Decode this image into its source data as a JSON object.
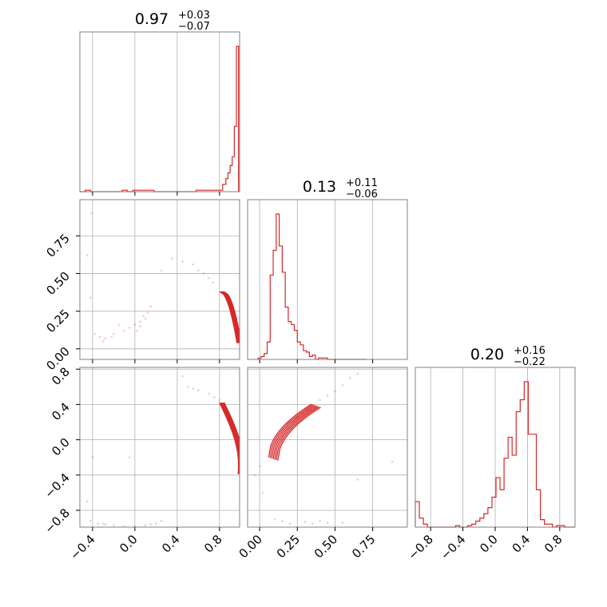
{
  "chart_data": {
    "type": "corner",
    "accent_color": "#d62728",
    "grid": true,
    "panels": [
      {
        "id": "hist-0",
        "type": "histogram",
        "title": {
          "value": "0.97",
          "plus": "+0.03",
          "minus": "−0.07"
        },
        "x_range": [
          -0.52,
          0.99
        ],
        "bins_x": [
          -0.52,
          -0.47,
          -0.42,
          -0.37,
          -0.32,
          -0.27,
          -0.22,
          -0.17,
          -0.12,
          -0.07,
          -0.02,
          0.03,
          0.08,
          0.13,
          0.18,
          0.23,
          0.28,
          0.33,
          0.38,
          0.43,
          0.48,
          0.53,
          0.58,
          0.63,
          0.68,
          0.73,
          0.78,
          0.83,
          0.86,
          0.88,
          0.9,
          0.92,
          0.94,
          0.96,
          0.98,
          0.99
        ],
        "counts": [
          0,
          0.01,
          0,
          0,
          0,
          0,
          0,
          0,
          0.01,
          0,
          0.01,
          0.01,
          0.01,
          0.01,
          0,
          0,
          0,
          0,
          0,
          0,
          0,
          0,
          0.01,
          0.01,
          0.01,
          0.01,
          0.01,
          0.05,
          0.09,
          0.13,
          0.18,
          0.24,
          0.45,
          1.0,
          0
        ]
      },
      {
        "id": "hist-1",
        "type": "histogram",
        "title": {
          "value": "0.13",
          "plus": "+0.11",
          "minus": "−0.06"
        },
        "x_range": [
          -0.08,
          0.98
        ],
        "bins_x": [
          -0.01,
          0.01,
          0.03,
          0.05,
          0.07,
          0.09,
          0.11,
          0.13,
          0.15,
          0.17,
          0.19,
          0.21,
          0.23,
          0.25,
          0.27,
          0.29,
          0.31,
          0.33,
          0.35,
          0.37,
          0.39,
          0.41,
          0.43,
          0.45,
          0.47,
          0.49,
          0.51,
          0.55,
          0.59,
          0.63,
          0.67,
          0.71
        ],
        "counts": [
          0.01,
          0.02,
          0.04,
          0.12,
          0.58,
          0.75,
          1.0,
          0.78,
          0.6,
          0.36,
          0.26,
          0.24,
          0.2,
          0.12,
          0.1,
          0.06,
          0.05,
          0.02,
          0.03,
          0,
          0.01,
          0.01,
          0.01,
          0,
          0,
          0,
          0,
          0,
          0,
          0,
          0
        ]
      },
      {
        "id": "hist-2",
        "type": "histogram",
        "title": {
          "value": "0.20",
          "plus": "+0.16",
          "minus": "−0.22"
        },
        "x_range": [
          -0.99,
          0.99
        ],
        "bins_x": [
          -0.99,
          -0.94,
          -0.89,
          -0.84,
          -0.79,
          -0.74,
          -0.69,
          -0.64,
          -0.59,
          -0.54,
          -0.49,
          -0.44,
          -0.39,
          -0.34,
          -0.29,
          -0.24,
          -0.19,
          -0.14,
          -0.09,
          -0.04,
          0.01,
          0.06,
          0.11,
          0.16,
          0.21,
          0.26,
          0.31,
          0.36,
          0.41,
          0.46,
          0.51,
          0.56,
          0.61,
          0.66,
          0.71,
          0.76,
          0.81,
          0.86,
          0.91,
          0.96,
          0.99
        ],
        "counts": [
          0.17,
          0.06,
          0.02,
          0,
          0,
          0,
          0,
          0,
          0,
          0,
          0.01,
          0,
          0,
          0.01,
          0.02,
          0.04,
          0.06,
          0.09,
          0.13,
          0.2,
          0.33,
          0.25,
          0.46,
          0.6,
          0.48,
          0.77,
          0.85,
          0.97,
          0.62,
          0.62,
          0.25,
          0.05,
          0.02,
          0.02,
          0,
          0.01,
          0.01,
          0,
          0,
          0
        ]
      }
    ],
    "scatter_panels": [
      {
        "id": "scatter-1-0",
        "x_range": [
          -0.52,
          0.99
        ],
        "y_range": [
          -0.07,
          0.99
        ]
      },
      {
        "id": "scatter-2-0",
        "x_range": [
          -0.52,
          0.99
        ],
        "y_range": [
          -0.99,
          0.82
        ]
      },
      {
        "id": "scatter-2-1",
        "x_range": [
          -0.08,
          0.98
        ],
        "y_range": [
          -0.99,
          0.82
        ]
      }
    ],
    "x_ticks": {
      "param0": [
        "−0.4",
        "0.0",
        "0.4",
        "0.8"
      ],
      "param0_values": [
        -0.4,
        0.0,
        0.4,
        0.8
      ],
      "param1": [
        "0.00",
        "0.25",
        "0.50",
        "0.75"
      ],
      "param1_values": [
        0.0,
        0.25,
        0.5,
        0.75
      ],
      "param2": [
        "−0.8",
        "−0.4",
        "0.0",
        "0.4",
        "0.8"
      ],
      "param2_values": [
        -0.8,
        -0.4,
        0.0,
        0.4,
        0.8
      ]
    },
    "y_ticks": {
      "row1": [
        "0.00",
        "0.25",
        "0.50",
        "0.75"
      ],
      "row1_values": [
        0.0,
        0.25,
        0.5,
        0.75
      ],
      "row2": [
        "−0.8",
        "−0.4",
        "0.0",
        "0.4",
        "0.8"
      ],
      "row2_values": [
        -0.8,
        -0.4,
        0.0,
        0.4,
        0.8
      ]
    }
  }
}
